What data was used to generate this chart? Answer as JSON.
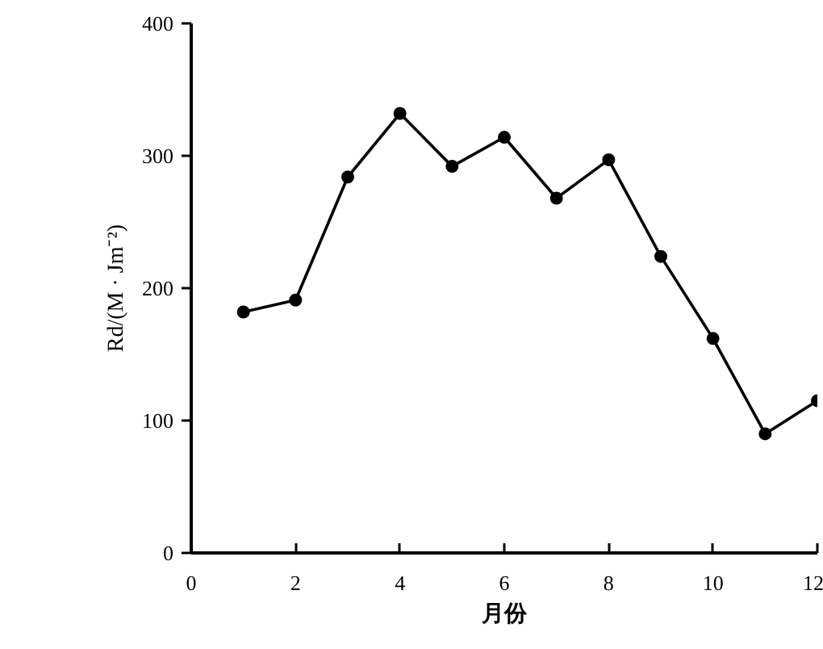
{
  "chart_data": {
    "type": "line",
    "xlabel": "月份",
    "ylabel": "Rd/(M · Jm⁻²)",
    "x": [
      1,
      2,
      3,
      4,
      5,
      6,
      7,
      8,
      9,
      10,
      11,
      12
    ],
    "series": [
      {
        "color": "#000000",
        "values": [
          182,
          191,
          284,
          332,
          292,
          314,
          268,
          297,
          224,
          162,
          90,
          115
        ]
      }
    ],
    "xlim": [
      0,
      12
    ],
    "xticks": [
      0,
      2,
      4,
      6,
      8,
      10,
      12
    ],
    "ylim": [
      0,
      400
    ],
    "yticks": [
      0,
      100,
      200,
      300,
      400
    ],
    "grid": false,
    "marker": "circle",
    "line_style": "solid"
  }
}
